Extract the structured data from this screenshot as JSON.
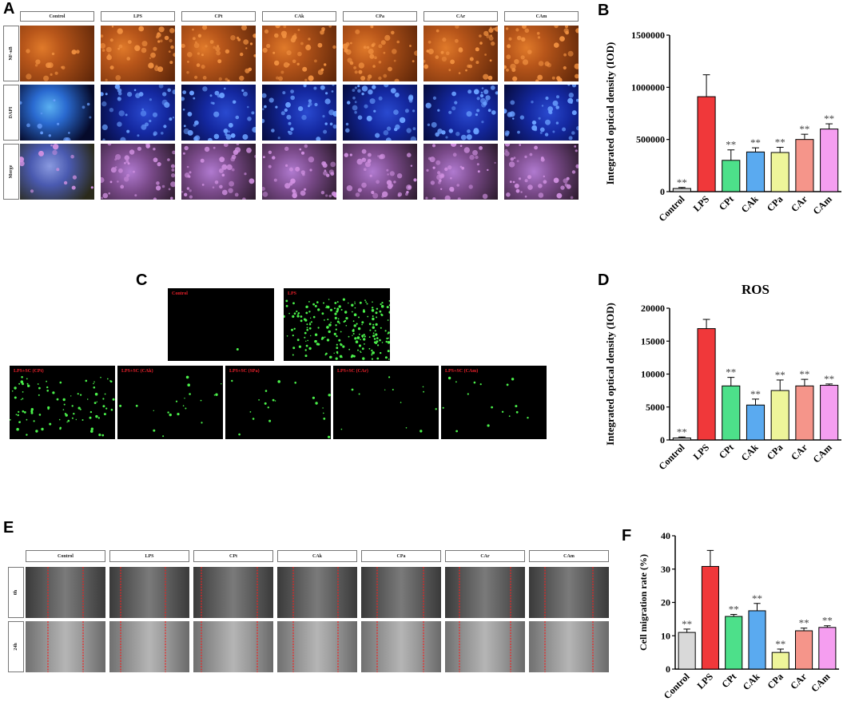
{
  "panels": {
    "a": {
      "letter": "A"
    },
    "b": {
      "letter": "B"
    },
    "c": {
      "letter": "C"
    },
    "d": {
      "letter": "D"
    },
    "e": {
      "letter": "E"
    },
    "f": {
      "letter": "F"
    }
  },
  "panel_a": {
    "columns": [
      "Control",
      "LPS",
      "CPt",
      "CAk",
      "CPa",
      "CAr",
      "CAm"
    ],
    "rows": [
      "NF-κB",
      "DAPI",
      "Merge"
    ],
    "row_colors": {
      "NF-κB": "#9a4a12",
      "DAPI": "#0d1a8c",
      "Merge": "#6b4a8a"
    }
  },
  "panel_c": {
    "top_labels": [
      "Control",
      "LPS"
    ],
    "bottom_labels": [
      "LPS+SC (CPt)",
      "LPS+SC (CAk)",
      "LPS+SC (SPa)",
      "LPS+SC (CAr)",
      "LPS+SC (CAm)"
    ]
  },
  "panel_e": {
    "columns": [
      "Control",
      "LPS",
      "CPt",
      "CAk",
      "CPa",
      "CAr",
      "CAm"
    ],
    "rows": [
      "0h",
      "24h"
    ]
  },
  "colors": {
    "Control": "#d9d9d9",
    "LPS": "#f0383a",
    "CPt": "#4de08a",
    "CAk": "#5aaaf0",
    "CPa": "#eef59a",
    "CAr": "#f5958a",
    "CAm": "#f59ef0"
  },
  "chart_data": [
    {
      "id": "B",
      "type": "bar",
      "title": "",
      "ylabel": "Integrated optical density (IOD)",
      "categories": [
        "Control",
        "LPS",
        "CPt",
        "CAk",
        "CPa",
        "CAr",
        "CAm"
      ],
      "values": [
        30000,
        910000,
        300000,
        380000,
        375000,
        500000,
        600000
      ],
      "errors": [
        10000,
        210000,
        100000,
        40000,
        50000,
        50000,
        50000
      ],
      "significance": [
        "**",
        "",
        "**",
        "**",
        "**",
        "**",
        "**"
      ],
      "ylim": [
        0,
        1500000
      ],
      "yticks": [
        "0",
        "500000",
        "1000000",
        "1500000"
      ]
    },
    {
      "id": "D",
      "type": "bar",
      "title": "ROS",
      "ylabel": "Integrated optical density (IOD)",
      "categories": [
        "Control",
        "LPS",
        "CPt",
        "CAk",
        "CPa",
        "CAr",
        "CAm"
      ],
      "values": [
        300,
        16900,
        8200,
        5300,
        7500,
        8200,
        8300
      ],
      "errors": [
        150,
        1400,
        1300,
        900,
        1600,
        1000,
        200
      ],
      "significance": [
        "**",
        "",
        "**",
        "**",
        "**",
        "**",
        "**"
      ],
      "ylim": [
        0,
        20000
      ],
      "yticks": [
        "0",
        "5000",
        "10000",
        "15000",
        "20000"
      ]
    },
    {
      "id": "F",
      "type": "bar",
      "title": "",
      "ylabel": "Cell migration rate (%)",
      "categories": [
        "Control",
        "LPS",
        "CPt",
        "CAk",
        "CPa",
        "CAr",
        "CAm"
      ],
      "values": [
        11,
        30.8,
        15.8,
        17.5,
        5,
        11.5,
        12.5
      ],
      "errors": [
        1,
        4.8,
        0.6,
        2.2,
        1,
        0.8,
        0.5
      ],
      "significance": [
        "**",
        "",
        "**",
        "**",
        "**",
        "**",
        "**"
      ],
      "ylim": [
        0,
        40
      ],
      "yticks": [
        "0",
        "10",
        "20",
        "30",
        "40"
      ]
    }
  ]
}
